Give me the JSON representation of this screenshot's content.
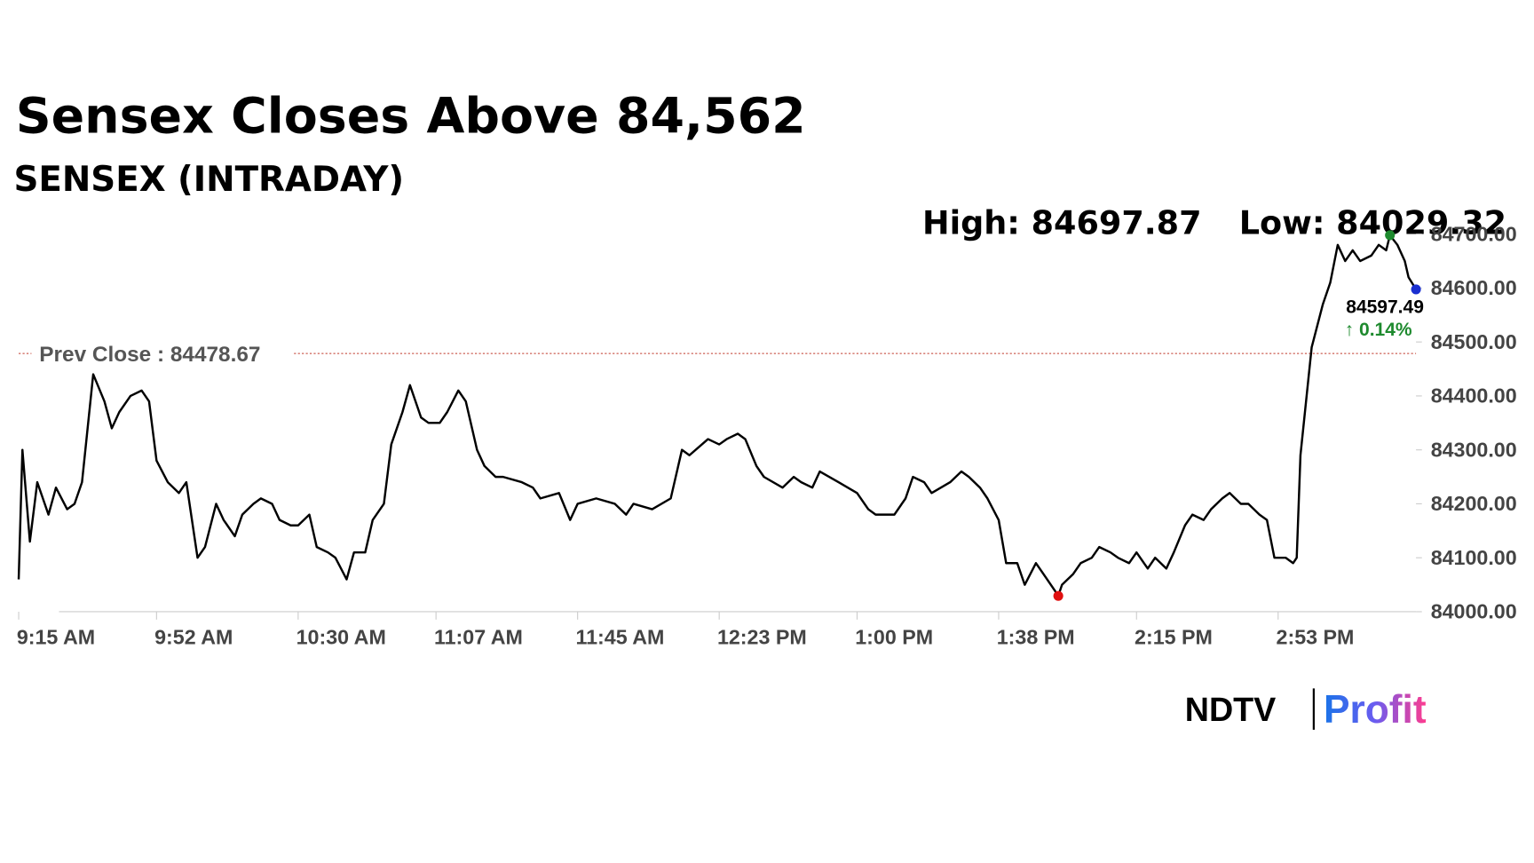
{
  "chart_data": {
    "type": "line",
    "title": "Sensex Closes Above 84,562",
    "subtitle": "SENSEX (INTRADAY)",
    "high_label": "High: 84697.87",
    "low_label": "Low: 84029.32",
    "prev_close": 84478.67,
    "prev_close_label": "Prev Close : 84478.67",
    "last_label": "84597.49",
    "change_label": "↑ 0.14%",
    "color": "#000000",
    "prev_close_color": "#c0392b",
    "high_color": "#1e8a2e",
    "low_color": "#e01010",
    "last_color": "#1a2fd0",
    "change_color": "#1e8a2e",
    "x": [
      "9:15 AM",
      "9:16 AM",
      "9:18 AM",
      "9:20 AM",
      "9:23 AM",
      "9:25 AM",
      "9:28 AM",
      "9:30 AM",
      "9:32 AM",
      "9:35 AM",
      "9:38 AM",
      "9:40 AM",
      "9:42 AM",
      "9:45 AM",
      "9:48 AM",
      "9:50 AM",
      "9:52 AM",
      "9:55 AM",
      "9:58 AM",
      "10:00 AM",
      "10:03 AM",
      "10:05 AM",
      "10:08 AM",
      "10:10 AM",
      "10:13 AM",
      "10:15 AM",
      "10:18 AM",
      "10:20 AM",
      "10:23 AM",
      "10:25 AM",
      "10:28 AM",
      "10:30 AM",
      "10:33 AM",
      "10:35 AM",
      "10:38 AM",
      "10:40 AM",
      "10:43 AM",
      "10:45 AM",
      "10:48 AM",
      "10:50 AM",
      "10:53 AM",
      "10:55 AM",
      "10:58 AM",
      "11:00 AM",
      "11:03 AM",
      "11:05 AM",
      "11:08 AM",
      "11:10 AM",
      "11:13 AM",
      "11:15 AM",
      "11:18 AM",
      "11:20 AM",
      "11:23 AM",
      "11:25 AM",
      "11:30 AM",
      "11:33 AM",
      "11:35 AM",
      "11:40 AM",
      "11:43 AM",
      "11:45 AM",
      "11:50 AM",
      "11:55 AM",
      "11:58 AM",
      "12:00 PM",
      "12:05 PM",
      "12:10 PM",
      "12:13 PM",
      "12:15 PM",
      "12:20 PM",
      "12:23 PM",
      "12:25 PM",
      "12:28 PM",
      "12:30 PM",
      "12:33 PM",
      "12:35 PM",
      "12:40 PM",
      "12:43 PM",
      "12:45 PM",
      "12:48 PM",
      "12:50 PM",
      "12:55 PM",
      "1:00 PM",
      "1:03 PM",
      "1:05 PM",
      "1:10 PM",
      "1:13 PM",
      "1:15 PM",
      "1:18 PM",
      "1:20 PM",
      "1:25 PM",
      "1:28 PM",
      "1:30 PM",
      "1:33 PM",
      "1:35 PM",
      "1:38 PM",
      "1:40 PM",
      "1:43 PM",
      "1:45 PM",
      "1:48 PM",
      "1:50 PM",
      "1:53 PM",
      "1:54 PM",
      "1:55 PM",
      "1:58 PM",
      "2:00 PM",
      "2:03 PM",
      "2:05 PM",
      "2:08 PM",
      "2:10 PM",
      "2:13 PM",
      "2:15 PM",
      "2:18 PM",
      "2:20 PM",
      "2:23 PM",
      "2:25 PM",
      "2:28 PM",
      "2:30 PM",
      "2:33 PM",
      "2:35 PM",
      "2:38 PM",
      "2:40 PM",
      "2:43 PM",
      "2:45 PM",
      "2:48 PM",
      "2:50 PM",
      "2:52 PM",
      "2:55 PM",
      "2:57 PM",
      "2:58 PM",
      "2:59 PM",
      "3:02 PM",
      "3:05 PM",
      "3:07 PM",
      "3:09 PM",
      "3:11 PM",
      "3:13 PM",
      "3:15 PM",
      "3:18 PM",
      "3:20 PM",
      "3:22 PM",
      "3:23 PM",
      "3:25 PM",
      "3:27 PM",
      "3:28 PM",
      "3:30 PM"
    ],
    "values": [
      84060,
      84300,
      84130,
      84240,
      84180,
      84230,
      84190,
      84200,
      84240,
      84440,
      84390,
      84340,
      84370,
      84400,
      84410,
      84390,
      84280,
      84240,
      84220,
      84240,
      84100,
      84120,
      84200,
      84170,
      84140,
      84180,
      84200,
      84210,
      84200,
      84170,
      84160,
      84160,
      84180,
      84120,
      84110,
      84100,
      84060,
      84110,
      84110,
      84170,
      84200,
      84310,
      84370,
      84420,
      84360,
      84350,
      84350,
      84370,
      84410,
      84390,
      84300,
      84270,
      84250,
      84250,
      84240,
      84230,
      84210,
      84220,
      84170,
      84200,
      84210,
      84200,
      84180,
      84200,
      84190,
      84210,
      84300,
      84290,
      84320,
      84310,
      84320,
      84330,
      84320,
      84270,
      84250,
      84230,
      84250,
      84240,
      84230,
      84260,
      84240,
      84220,
      84190,
      84180,
      84180,
      84210,
      84250,
      84240,
      84220,
      84240,
      84260,
      84250,
      84230,
      84210,
      84170,
      84090,
      84090,
      84050,
      84090,
      84070,
      84040,
      84029.32,
      84050,
      84070,
      84090,
      84100,
      84120,
      84110,
      84100,
      84090,
      84110,
      84080,
      84100,
      84080,
      84110,
      84160,
      84180,
      84170,
      84190,
      84210,
      84220,
      84200,
      84200,
      84180,
      84170,
      84100,
      84100,
      84090,
      84100,
      84290,
      84490,
      84570,
      84610,
      84680,
      84650,
      84670,
      84650,
      84660,
      84680,
      84670,
      84697.87,
      84680,
      84650,
      84620,
      84597.49
    ],
    "xlim": [
      "9:15 AM",
      "3:30 PM"
    ],
    "xticks": [
      "9:15 AM",
      "9:52 AM",
      "10:30 AM",
      "11:07 AM",
      "11:45 AM",
      "12:23 PM",
      "1:00 PM",
      "1:38 PM",
      "2:15 PM",
      "2:53 PM"
    ],
    "ylim": [
      84000,
      84700
    ],
    "yticks": [
      {
        "value": 84000,
        "label": "84000.00"
      },
      {
        "value": 84100,
        "label": "84100.00"
      },
      {
        "value": 84200,
        "label": "84200.00"
      },
      {
        "value": 84300,
        "label": "84300.00"
      },
      {
        "value": 84400,
        "label": "84400.00"
      },
      {
        "value": 84500,
        "label": "84500.00"
      },
      {
        "value": 84600,
        "label": "84600.00"
      },
      {
        "value": 84700,
        "label": "84700.00"
      }
    ],
    "grid": false
  },
  "logo": {
    "left": "NDTV",
    "right": "Profit"
  }
}
